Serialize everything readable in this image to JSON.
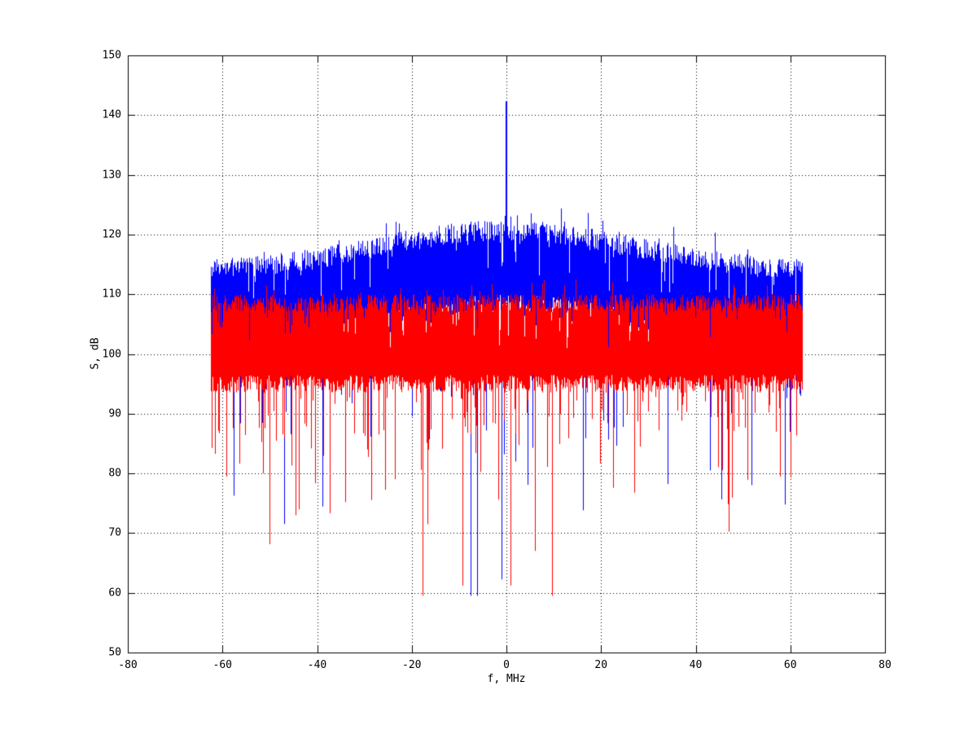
{
  "figure": {
    "background": "#ffffff",
    "axis_color": "#000000",
    "grid_style": "dotted"
  },
  "chart_data": {
    "type": "line",
    "title": "",
    "xlabel": "f, MHz",
    "ylabel": "S, dB",
    "xlim": [
      -80,
      80
    ],
    "ylim": [
      50,
      150
    ],
    "xticks": [
      "-80",
      "-60",
      "-40",
      "-20",
      "0",
      "20",
      "40",
      "60",
      "80"
    ],
    "yticks": [
      "50",
      "60",
      "70",
      "80",
      "90",
      "100",
      "110",
      "120",
      "130",
      "140",
      "150"
    ],
    "grid": "dotted",
    "legend": "none",
    "signal_band_mhz": [
      -62.5,
      62.5
    ],
    "series": [
      {
        "name": "blue-spectrum",
        "color": "#0000ff",
        "draw_order": 1,
        "description": "noise spectrum with raised hump toward 0 MHz and a carrier spike at 0 MHz",
        "band_top_edge_db": 112,
        "band_top_center_db": 119,
        "hump_half_width_mhz": 38,
        "top_jitter_db": 3.5,
        "band_thickness_db": 11,
        "downward_spikes": {
          "probability": 0.06,
          "start_db": 95,
          "mean_depth_db": 8.5,
          "min_db": 59.5
        },
        "carrier_spike": {
          "f_mhz": 0,
          "peak_db": 142.3
        }
      },
      {
        "name": "red-spectrum",
        "color": "#ff0000",
        "draw_order": 2,
        "description": "flat dense noise band roughly 93-111 dB drawn on top of the blue trace",
        "band_top_edge_db": 110,
        "band_top_center_db": 110,
        "hump_half_width_mhz": 0,
        "top_jitter_db": 3,
        "band_bottom_db": 93.5,
        "downward_spikes": {
          "probability": 0.16,
          "start_db": 93,
          "mean_depth_db": 8,
          "min_db": 59.5
        },
        "carrier_spike": null
      }
    ]
  }
}
